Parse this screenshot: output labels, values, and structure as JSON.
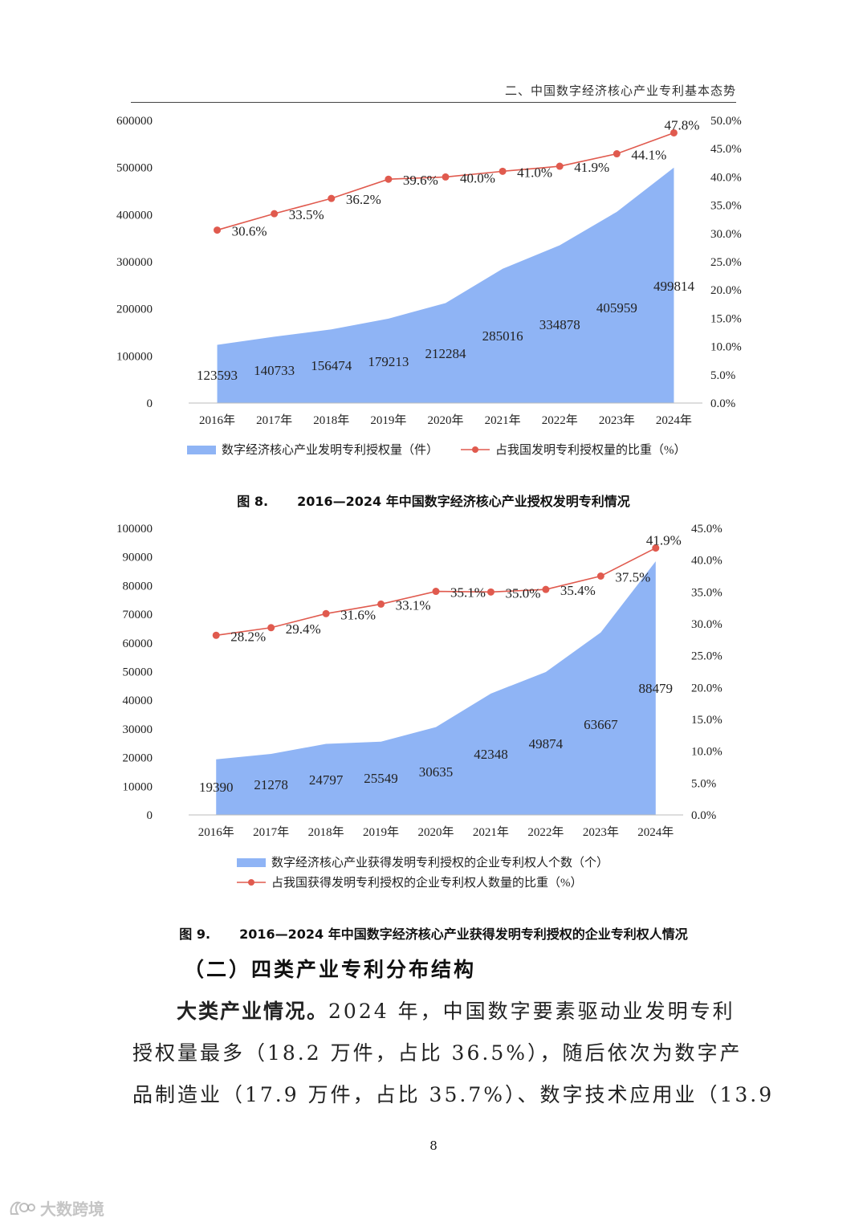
{
  "header": {
    "title": "二、中国数字经济核心产业专利基本态势"
  },
  "chart_data": [
    {
      "type": "area",
      "categories": [
        "2016年",
        "2017年",
        "2018年",
        "2019年",
        "2020年",
        "2021年",
        "2022年",
        "2023年",
        "2024年"
      ],
      "series": [
        {
          "name": "数字经济核心产业发明专利授权量（件）",
          "type": "area",
          "axis": "left",
          "color": "#8fb4f5",
          "values": [
            123593,
            140733,
            156474,
            179213,
            212284,
            285016,
            334878,
            405959,
            499814
          ],
          "labels": [
            "123593",
            "140733",
            "156474",
            "179213",
            "212284",
            "285016",
            "334878",
            "405959",
            "499814"
          ]
        },
        {
          "name": "占我国发明专利授权量的比重（%）",
          "type": "line",
          "axis": "right",
          "color": "#e05a4e",
          "values": [
            30.6,
            33.5,
            36.2,
            39.6,
            40.0,
            41.0,
            41.9,
            44.1,
            47.8
          ],
          "labels": [
            "30.6%",
            "33.5%",
            "36.2%",
            "39.6%",
            "40.0%",
            "41.0%",
            "41.9%",
            "44.1%",
            "47.8%"
          ]
        }
      ],
      "ylim": [
        0,
        600000
      ],
      "y_ticks": [
        "0",
        "100000",
        "200000",
        "300000",
        "400000",
        "500000",
        "600000"
      ],
      "y2lim": [
        0,
        50
      ],
      "y2_ticks": [
        "0.0%",
        "5.0%",
        "10.0%",
        "15.0%",
        "20.0%",
        "25.0%",
        "30.0%",
        "35.0%",
        "40.0%",
        "45.0%",
        "50.0%"
      ],
      "legend_placement": "bottom",
      "grid": false,
      "caption_number": "图 8.",
      "caption_text": "2016—2024 年中国数字经济核心产业授权发明专利情况"
    },
    {
      "type": "area",
      "categories": [
        "2016年",
        "2017年",
        "2018年",
        "2019年",
        "2020年",
        "2021年",
        "2022年",
        "2023年",
        "2024年"
      ],
      "series": [
        {
          "name": "数字经济核心产业获得发明专利授权的企业专利权人个数（个）",
          "type": "area",
          "axis": "left",
          "color": "#8fb4f5",
          "values": [
            19390,
            21278,
            24797,
            25549,
            30635,
            42348,
            49874,
            63667,
            88479
          ],
          "labels": [
            "19390",
            "21278",
            "24797",
            "25549",
            "30635",
            "42348",
            "49874",
            "63667",
            "88479"
          ]
        },
        {
          "name": "占我国获得发明专利授权的企业专利权人数量的比重（%）",
          "type": "line",
          "axis": "right",
          "color": "#e05a4e",
          "values": [
            28.2,
            29.4,
            31.6,
            33.1,
            35.1,
            35.0,
            35.4,
            37.5,
            41.9
          ],
          "labels": [
            "28.2%",
            "29.4%",
            "31.6%",
            "33.1%",
            "35.1%",
            "35.0%",
            "35.4%",
            "37.5%",
            "41.9%"
          ]
        }
      ],
      "ylim": [
        0,
        100000
      ],
      "y_ticks": [
        "0",
        "10000",
        "20000",
        "30000",
        "40000",
        "50000",
        "60000",
        "70000",
        "80000",
        "90000",
        "100000"
      ],
      "y2lim": [
        0,
        45
      ],
      "y2_ticks": [
        "0.0%",
        "5.0%",
        "10.0%",
        "15.0%",
        "20.0%",
        "25.0%",
        "30.0%",
        "35.0%",
        "40.0%",
        "45.0%"
      ],
      "legend_placement": "bottom",
      "grid": false,
      "caption_number": "图 9.",
      "caption_text": "2016—2024 年中国数字经济核心产业获得发明专利授权的企业专利权人情况"
    }
  ],
  "section": {
    "heading": "（二）四类产业专利分布结构"
  },
  "paragraph": {
    "lead": "大类产业情况。",
    "line1_rest": "2024 年，中国数字要素驱动业发明专利",
    "line2": "授权量最多（18.2 万件，占比 36.5%），随后依次为数字产",
    "line3": "品制造业（17.9 万件，占比 35.7%）、数字技术应用业（13.9"
  },
  "footer": {
    "page_number": "8",
    "watermark": "大数跨境"
  }
}
